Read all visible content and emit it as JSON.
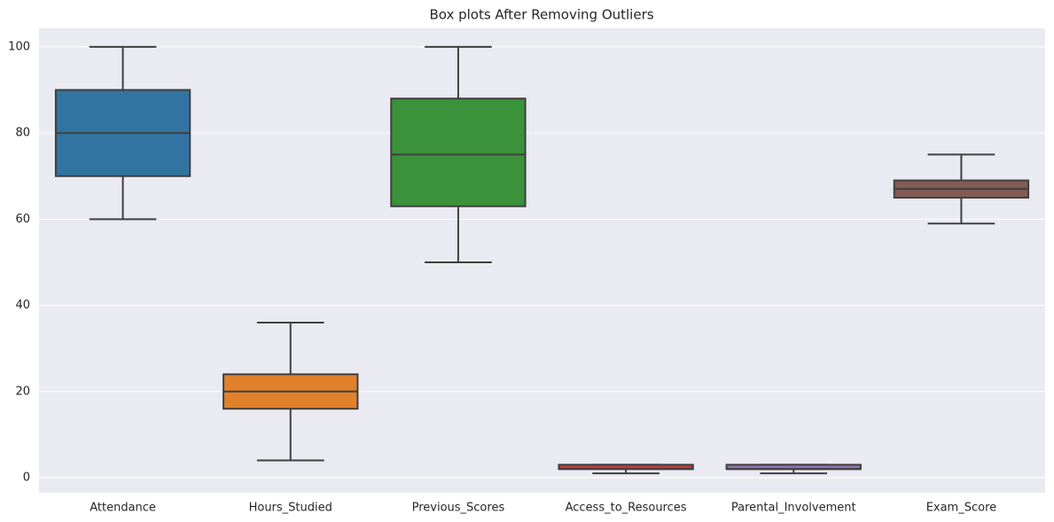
{
  "chart_data": {
    "type": "box",
    "title": "Box plots After Removing Outliers",
    "categories": [
      "Attendance",
      "Hours_Studied",
      "Previous_Scores",
      "Access_to_Resources",
      "Parental_Involvement",
      "Exam_Score"
    ],
    "boxes": [
      {
        "min": 60,
        "q1": 70,
        "median": 80,
        "q3": 90,
        "max": 100,
        "color": "#3274a1"
      },
      {
        "min": 4,
        "q1": 16,
        "median": 20,
        "q3": 24,
        "max": 36,
        "color": "#e1812c"
      },
      {
        "min": 50,
        "q1": 63,
        "median": 75,
        "q3": 88,
        "max": 100,
        "color": "#3a923a"
      },
      {
        "min": 1,
        "q1": 2,
        "median": 2,
        "q3": 3,
        "max": 3,
        "color": "#c03d3e"
      },
      {
        "min": 1,
        "q1": 2,
        "median": 2,
        "q3": 3,
        "max": 3,
        "color": "#9372b2"
      },
      {
        "min": 59,
        "q1": 65,
        "median": 67,
        "q3": 69,
        "max": 75,
        "color": "#845b53"
      }
    ],
    "ylim": [
      -3.5,
      104.3
    ],
    "yticks": [
      0,
      20,
      40,
      60,
      80,
      100
    ],
    "grid": true
  }
}
